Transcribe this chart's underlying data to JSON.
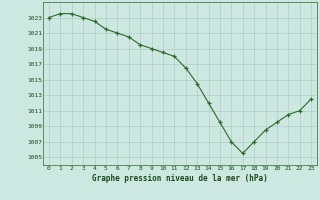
{
  "x": [
    0,
    1,
    2,
    3,
    4,
    5,
    6,
    7,
    8,
    9,
    10,
    11,
    12,
    13,
    14,
    15,
    16,
    17,
    18,
    19,
    20,
    21,
    22,
    23
  ],
  "y": [
    1023.0,
    1023.5,
    1023.5,
    1023.0,
    1022.5,
    1021.5,
    1021.0,
    1020.5,
    1019.5,
    1019.0,
    1018.5,
    1018.0,
    1016.5,
    1014.5,
    1012.0,
    1009.5,
    1007.0,
    1005.5,
    1007.0,
    1008.5,
    1009.5,
    1010.5,
    1011.0,
    1012.5
  ],
  "ylim": [
    1004,
    1025
  ],
  "yticks": [
    1005,
    1007,
    1009,
    1011,
    1013,
    1015,
    1017,
    1019,
    1021,
    1023
  ],
  "xlim": [
    -0.5,
    23.5
  ],
  "xticks": [
    0,
    1,
    2,
    3,
    4,
    5,
    6,
    7,
    8,
    9,
    10,
    11,
    12,
    13,
    14,
    15,
    16,
    17,
    18,
    19,
    20,
    21,
    22,
    23
  ],
  "line_color": "#2d6a2d",
  "marker_color": "#2d6a2d",
  "bg_color": "#cce8e0",
  "grid_color": "#b0cfc5",
  "xlabel": "Graphe pression niveau de la mer (hPa)",
  "xlabel_color": "#1a4a1a",
  "tick_label_color": "#1a4a1a",
  "spine_color": "#2d6a2d"
}
